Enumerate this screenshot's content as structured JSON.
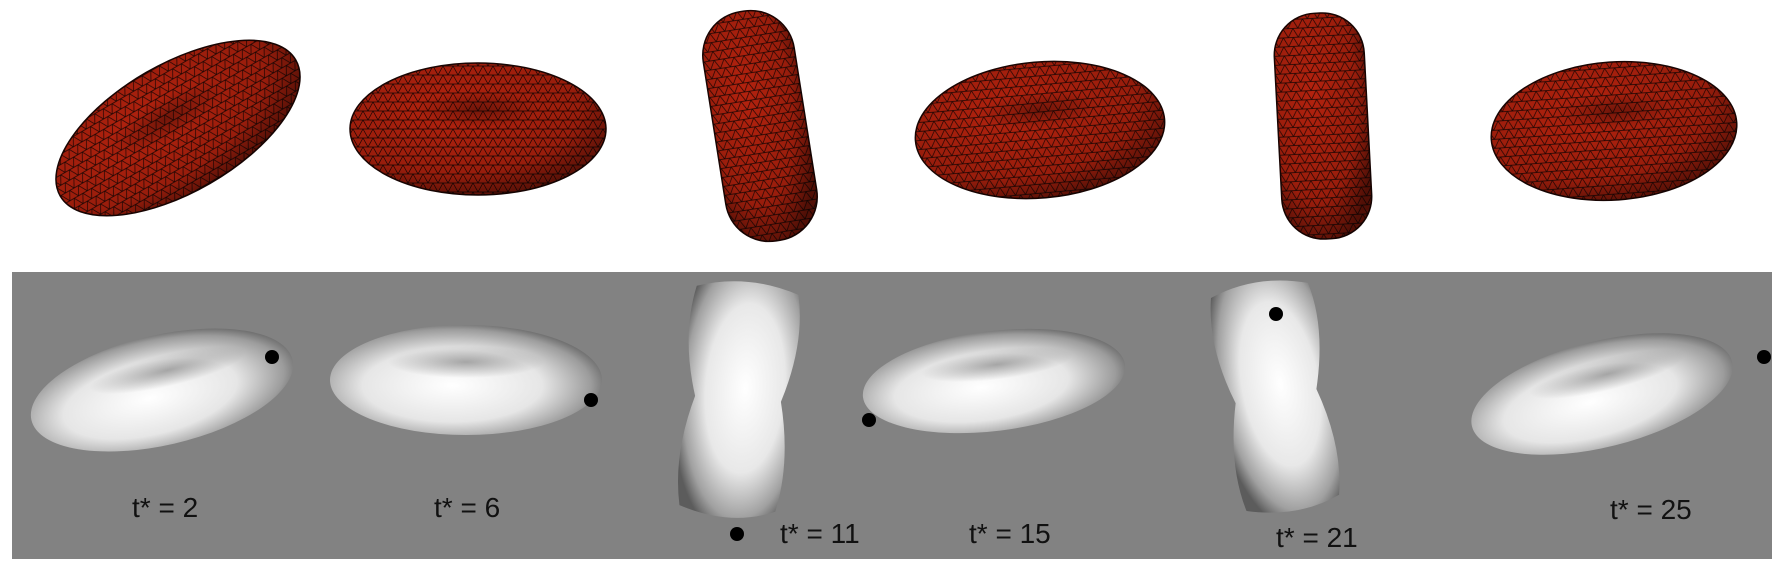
{
  "top_row": {
    "description_colors": {
      "mesh_fill": "#b3220e",
      "mesh_line": "#1a0503"
    },
    "cells": [
      {
        "view": "oblique-disc"
      },
      {
        "view": "flat-disc"
      },
      {
        "view": "edge-on"
      },
      {
        "view": "flat-disc"
      },
      {
        "view": "edge-on"
      },
      {
        "view": "flat-disc"
      }
    ]
  },
  "bottom_row": {
    "colors": {
      "background": "#828282",
      "surface_light": "#ffffff",
      "surface_dark": "#4a4a4a",
      "marker": "#000000"
    },
    "cells": [
      {
        "label": "t* = 2"
      },
      {
        "label": "t* = 6"
      },
      {
        "label": "t* = 11"
      },
      {
        "label": "t* = 15"
      },
      {
        "label": "t* = 21"
      },
      {
        "label": "t* = 25"
      }
    ]
  }
}
